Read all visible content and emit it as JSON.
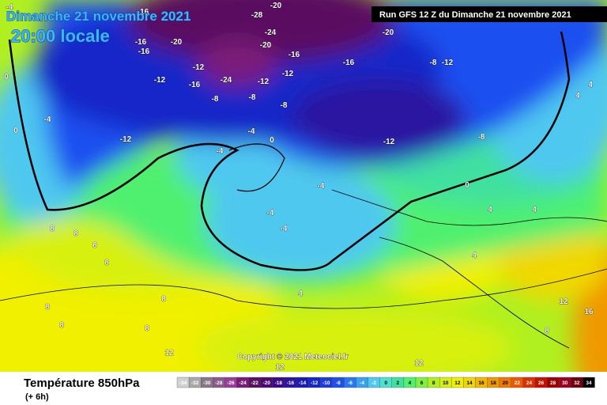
{
  "header": {
    "date": "Dimanche 21 novembre 2021",
    "time": "20:00 locale",
    "run": "Run GFS 12 Z du Dimanche 21 novembre 2021"
  },
  "copyright": "Copyright © 2021 Meteociel.fr",
  "footer": {
    "title": "Température 850hPa",
    "lead": "(+ 6h)"
  },
  "legend": {
    "values": [
      -34,
      -32,
      -30,
      -28,
      -26,
      -24,
      -22,
      -20,
      -18,
      -16,
      -14,
      -12,
      -10,
      -8,
      -6,
      -4,
      -2,
      0,
      2,
      4,
      6,
      8,
      10,
      12,
      14,
      16,
      18,
      20,
      22,
      24,
      26,
      28,
      30,
      32,
      34
    ],
    "colors": [
      "#d0d0d0",
      "#a8a8a8",
      "#887888",
      "#8a5a8a",
      "#9a3c9a",
      "#7a1a7a",
      "#5a1060",
      "#4a0a70",
      "#3a0a8a",
      "#2a14a0",
      "#1a1ab4",
      "#1428c8",
      "#1a3cdc",
      "#1e50f0",
      "#2a78f0",
      "#3aa0f0",
      "#50c8f0",
      "#50e0d0",
      "#40e0a0",
      "#50f070",
      "#80f040",
      "#b0f020",
      "#d8f010",
      "#f0f000",
      "#f0d800",
      "#f0b800",
      "#f09800",
      "#f07800",
      "#f05800",
      "#e03000",
      "#c81000",
      "#a00000",
      "#a00020",
      "#700010",
      "#000000"
    ]
  },
  "map_labels": [
    -4,
    -16,
    -20,
    -28,
    -20,
    -24,
    -20,
    -16,
    -16,
    -20,
    -16,
    -16,
    -8,
    -12,
    -12,
    -24,
    -12,
    -16,
    -12,
    -12,
    -8,
    -8,
    -8,
    0,
    -4,
    0,
    -12,
    -4,
    0,
    -4,
    -12,
    -8,
    -4,
    0,
    -4,
    -4,
    4,
    4,
    8,
    8,
    8,
    8,
    4,
    4,
    8,
    8,
    8,
    8,
    12,
    16,
    12,
    12,
    12,
    8,
    4,
    4
  ]
}
